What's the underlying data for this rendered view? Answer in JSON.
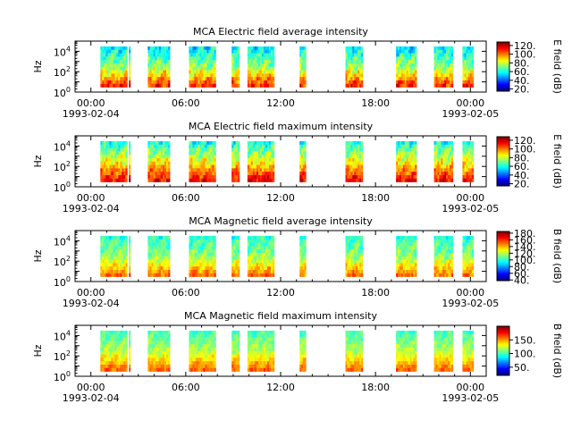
{
  "chart_data": [
    {
      "type": "heatmap",
      "title": "MCA  Electric field average intensity",
      "ylabel": "Hz",
      "colorbar_label": "E field (dB)",
      "colorbar_ticks": [
        "20.",
        "40.",
        "60.",
        "80.",
        "100.",
        "120."
      ],
      "colorbar_range": [
        15,
        128
      ],
      "y_ticks": [
        {
          "base": "10",
          "exp": "0",
          "value": 1
        },
        {
          "base": "10",
          "exp": "2",
          "value": 100
        },
        {
          "base": "10",
          "exp": "4",
          "value": 10000
        }
      ],
      "ylim": [
        1,
        100000
      ],
      "yscale": "log",
      "x_ticks": [
        {
          "time": "00:00",
          "date": "1993-02-04"
        },
        {
          "time": "06:00",
          "date": ""
        },
        {
          "time": "12:00",
          "date": ""
        },
        {
          "time": "18:00",
          "date": ""
        },
        {
          "time": "00:00",
          "date": "1993-02-05"
        }
      ],
      "xlim_hours": [
        -1,
        25
      ],
      "data_intervals_hours": [
        [
          0.6,
          2.3
        ],
        [
          2.4,
          2.5
        ],
        [
          3.6,
          5.0
        ],
        [
          6.2,
          7.9
        ],
        [
          8.9,
          9.4
        ],
        [
          9.9,
          11.6
        ],
        [
          13.2,
          13.6
        ],
        [
          16.1,
          17.2
        ],
        [
          19.3,
          20.6
        ],
        [
          21.7,
          22.9
        ],
        [
          23.5,
          24.2
        ]
      ],
      "band_hz": [
        3,
        30000
      ],
      "typical_intensity_db": {
        "low_freq": 110,
        "mid_freq": 75,
        "high_freq": 55
      }
    },
    {
      "type": "heatmap",
      "title": "MCA  Electric field maximum intensity",
      "ylabel": "Hz",
      "colorbar_label": "E field (dB)",
      "colorbar_ticks": [
        "20.",
        "40.",
        "60.",
        "80.",
        "100.",
        "120."
      ],
      "colorbar_range": [
        15,
        128
      ],
      "y_ticks": [
        {
          "base": "10",
          "exp": "0",
          "value": 1
        },
        {
          "base": "10",
          "exp": "2",
          "value": 100
        },
        {
          "base": "10",
          "exp": "4",
          "value": 10000
        }
      ],
      "ylim": [
        1,
        100000
      ],
      "yscale": "log",
      "x_ticks": [
        {
          "time": "00:00",
          "date": "1993-02-04"
        },
        {
          "time": "06:00",
          "date": ""
        },
        {
          "time": "12:00",
          "date": ""
        },
        {
          "time": "18:00",
          "date": ""
        },
        {
          "time": "00:00",
          "date": "1993-02-05"
        }
      ],
      "xlim_hours": [
        -1,
        25
      ],
      "data_intervals_hours": [
        [
          0.6,
          2.3
        ],
        [
          2.4,
          2.5
        ],
        [
          3.6,
          5.0
        ],
        [
          6.2,
          7.9
        ],
        [
          8.9,
          9.4
        ],
        [
          9.9,
          11.6
        ],
        [
          13.2,
          13.6
        ],
        [
          16.1,
          17.2
        ],
        [
          19.3,
          20.6
        ],
        [
          21.7,
          22.9
        ],
        [
          23.5,
          24.2
        ]
      ],
      "band_hz": [
        3,
        30000
      ],
      "typical_intensity_db": {
        "low_freq": 115,
        "mid_freq": 85,
        "high_freq": 60
      }
    },
    {
      "type": "heatmap",
      "title": "MCA  Magnetic field average intensity",
      "ylabel": "Hz",
      "colorbar_label": "B field (dB)",
      "colorbar_ticks": [
        "40.",
        "60.",
        "80.",
        "100.",
        "120.",
        "140.",
        "160.",
        "180."
      ],
      "colorbar_range": [
        38,
        185
      ],
      "y_ticks": [
        {
          "base": "10",
          "exp": "0",
          "value": 1
        },
        {
          "base": "10",
          "exp": "2",
          "value": 100
        },
        {
          "base": "10",
          "exp": "4",
          "value": 10000
        }
      ],
      "ylim": [
        1,
        100000
      ],
      "yscale": "log",
      "x_ticks": [
        {
          "time": "00:00",
          "date": "1993-02-04"
        },
        {
          "time": "06:00",
          "date": ""
        },
        {
          "time": "12:00",
          "date": ""
        },
        {
          "time": "18:00",
          "date": ""
        },
        {
          "time": "00:00",
          "date": "1993-02-05"
        }
      ],
      "xlim_hours": [
        -1,
        25
      ],
      "data_intervals_hours": [
        [
          0.6,
          2.3
        ],
        [
          2.4,
          2.5
        ],
        [
          3.6,
          5.0
        ],
        [
          6.2,
          7.9
        ],
        [
          8.9,
          9.4
        ],
        [
          9.9,
          11.6
        ],
        [
          13.2,
          13.6
        ],
        [
          16.1,
          17.2
        ],
        [
          19.3,
          20.6
        ],
        [
          21.7,
          22.9
        ],
        [
          23.5,
          24.2
        ]
      ],
      "band_hz": [
        3,
        30000
      ],
      "typical_intensity_db": {
        "low_freq": 150,
        "mid_freq": 115,
        "high_freq": 100
      }
    },
    {
      "type": "heatmap",
      "title": "MCA  Magnetic field maximum intensity",
      "ylabel": "Hz",
      "colorbar_label": "B field (dB)",
      "colorbar_ticks": [
        "50.",
        "100.",
        "150."
      ],
      "colorbar_range": [
        20,
        200
      ],
      "y_ticks": [
        {
          "base": "10",
          "exp": "0",
          "value": 1
        },
        {
          "base": "10",
          "exp": "2",
          "value": 100
        },
        {
          "base": "10",
          "exp": "4",
          "value": 10000
        }
      ],
      "ylim": [
        1,
        100000
      ],
      "yscale": "log",
      "x_ticks": [
        {
          "time": "00:00",
          "date": "1993-02-04"
        },
        {
          "time": "06:00",
          "date": ""
        },
        {
          "time": "12:00",
          "date": ""
        },
        {
          "time": "18:00",
          "date": ""
        },
        {
          "time": "00:00",
          "date": "1993-02-05"
        }
      ],
      "xlim_hours": [
        -1,
        25
      ],
      "data_intervals_hours": [
        [
          0.6,
          2.3
        ],
        [
          2.4,
          2.5
        ],
        [
          3.6,
          5.0
        ],
        [
          6.2,
          7.9
        ],
        [
          8.9,
          9.4
        ],
        [
          9.9,
          11.6
        ],
        [
          13.2,
          13.6
        ],
        [
          16.1,
          17.2
        ],
        [
          19.3,
          20.6
        ],
        [
          21.7,
          22.9
        ],
        [
          23.5,
          24.2
        ]
      ],
      "band_hz": [
        3,
        30000
      ],
      "typical_intensity_db": {
        "low_freq": 160,
        "mid_freq": 120,
        "high_freq": 100
      }
    }
  ]
}
